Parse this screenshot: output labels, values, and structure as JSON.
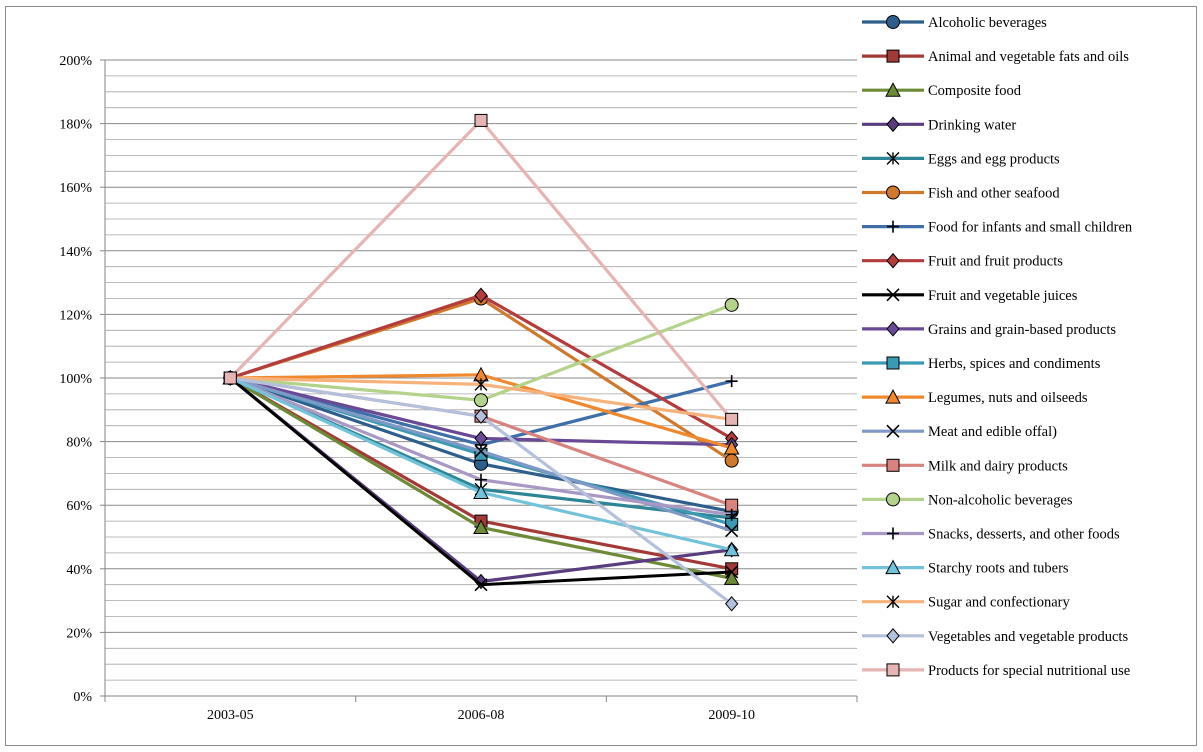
{
  "chart_data": {
    "type": "line",
    "categories": [
      "2003-05",
      "2006-08",
      "2009-10"
    ],
    "ylim": [
      0,
      200
    ],
    "y_tick_values": [
      0,
      20,
      40,
      60,
      80,
      100,
      120,
      140,
      160,
      180,
      200
    ],
    "y_tick_labels": [
      "0%",
      "20%",
      "40%",
      "60%",
      "80%",
      "100%",
      "120%",
      "140%",
      "160%",
      "180%",
      "200%"
    ],
    "grid": "horizontal minor every 5%",
    "legend_position": "right",
    "series": [
      {
        "name": "Alcoholic beverages",
        "values": [
          100,
          73,
          58
        ],
        "color": "#2e5f8c",
        "marker": "circle"
      },
      {
        "name": "Animal and vegetable fats and oils",
        "values": [
          100,
          55,
          40
        ],
        "color": "#a33a37",
        "marker": "square"
      },
      {
        "name": "Composite food",
        "values": [
          100,
          53,
          37
        ],
        "color": "#6d8a37",
        "marker": "triangle"
      },
      {
        "name": "Drinking water",
        "values": [
          100,
          36,
          46
        ],
        "color": "#5a3d7e",
        "marker": "diamond"
      },
      {
        "name": "Eggs and egg products",
        "values": [
          100,
          65,
          56
        ],
        "color": "#2e8596",
        "marker": "asterisk"
      },
      {
        "name": "Fish and other seafood",
        "values": [
          100,
          125,
          74
        ],
        "color": "#d0792c",
        "marker": "circle"
      },
      {
        "name": "Food for infants and small children",
        "values": [
          100,
          79,
          99
        ],
        "color": "#3e6fa8",
        "marker": "plus"
      },
      {
        "name": "Fruit and fruit products",
        "values": [
          100,
          126,
          81
        ],
        "color": "#b43c3c",
        "marker": "diamond"
      },
      {
        "name": "Fruit and vegetable juices",
        "values": [
          100,
          35,
          39
        ],
        "color": "#000000",
        "marker": "x"
      },
      {
        "name": "Grains and grain-based products",
        "values": [
          100,
          81,
          79
        ],
        "color": "#6a4a96",
        "marker": "diamond"
      },
      {
        "name": "Herbs, spices and condiments",
        "values": [
          100,
          76,
          54
        ],
        "color": "#3a9ab3",
        "marker": "square"
      },
      {
        "name": "Legumes, nuts and oilseeds",
        "values": [
          100,
          101,
          78
        ],
        "color": "#f0882e",
        "marker": "triangle"
      },
      {
        "name": "Meat and edible offal)",
        "values": [
          100,
          77,
          52
        ],
        "color": "#7f99c6",
        "marker": "x"
      },
      {
        "name": "Milk and dairy products",
        "values": [
          100,
          88,
          60
        ],
        "color": "#d9837f",
        "marker": "square"
      },
      {
        "name": "Non-alcoholic beverages",
        "values": [
          100,
          93,
          123
        ],
        "color": "#b3d38a",
        "marker": "circle"
      },
      {
        "name": "Snacks, desserts, and other foods",
        "values": [
          100,
          68,
          57
        ],
        "color": "#a998c3",
        "marker": "plus"
      },
      {
        "name": "Starchy roots and tubers",
        "values": [
          100,
          64,
          46
        ],
        "color": "#72c3d9",
        "marker": "triangle"
      },
      {
        "name": "Sugar and confectionary",
        "values": [
          100,
          98,
          87
        ],
        "color": "#f6b27a",
        "marker": "asterisk"
      },
      {
        "name": "Vegetables and vegetable products",
        "values": [
          100,
          88,
          29
        ],
        "color": "#b3c1dc",
        "marker": "diamond"
      },
      {
        "name": "Products for special nutritional use",
        "values": [
          100,
          181,
          87
        ],
        "color": "#e6b4b2",
        "marker": "square"
      }
    ]
  }
}
